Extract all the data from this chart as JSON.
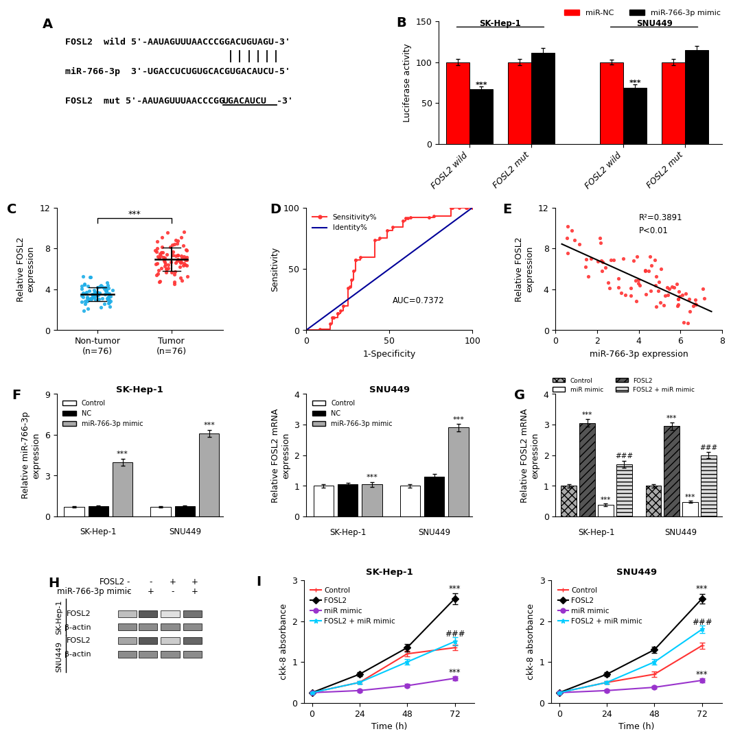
{
  "panel_A": {
    "fosl2_wild": "FOSL2  wild 5'-AAUAGUUUAACCCGGACUGUAGU-3'",
    "mir": "miR-766-3p  3'-UGACCUCUGUGCACGUGACAUCU-5'",
    "fosl2_mut_prefix": "FOSL2  mut 5'-AAUAGUUUAACCCGG",
    "fosl2_mut_underlined": "UGACAUCU",
    "fosl2_mut_suffix": "-3'"
  },
  "panel_B": {
    "title_sk": "SK-Hep-1",
    "title_snu": "SNU449",
    "mir_nc_values": [
      100,
      100,
      100,
      100
    ],
    "mir_mimic_values": [
      67,
      111,
      69,
      115
    ],
    "mir_nc_err": [
      4,
      4,
      3,
      4
    ],
    "mir_mimic_err": [
      3,
      6,
      4,
      5
    ],
    "ylabel": "Luciferase activity",
    "ylim": [
      0,
      150
    ],
    "yticks": [
      0,
      50,
      100,
      150
    ],
    "color_nc": "#FF0000",
    "color_mimic": "#000000",
    "legend_nc": "miR-NC",
    "legend_mimic": "miR-766-3p mimic"
  },
  "panel_C": {
    "nontumor_mean": 3.4,
    "nontumor_sd": 0.75,
    "tumor_mean": 6.9,
    "tumor_sd": 1.1,
    "ylim": [
      0,
      12
    ],
    "yticks": [
      0,
      4,
      8,
      12
    ],
    "color_nontumor": "#1EAEE8",
    "color_tumor": "#FF3333"
  },
  "panel_D": {
    "xlabel": "1-Specificity",
    "ylabel": "Sensitivity",
    "xlim": [
      0,
      100
    ],
    "ylim": [
      0,
      100
    ],
    "xticks": [
      0,
      50,
      100
    ],
    "yticks": [
      0,
      50,
      100
    ],
    "auc_text": "AUC=0.7372",
    "legend_sens": "Sensitivity%",
    "legend_ident": "Identity%",
    "color_roc": "#FF3333",
    "color_diag": "#000099"
  },
  "panel_E": {
    "xlabel": "miR-766-3p expression",
    "xlim": [
      0,
      8
    ],
    "ylim": [
      0,
      12
    ],
    "yticks": [
      0,
      4,
      8,
      12
    ],
    "r2_text": "R²=0.3891",
    "p_text": "P<0.01",
    "color_dots": "#FF3333"
  },
  "panel_F_left": {
    "title": "SK-Hep-1",
    "ylabel_left": "Relative miR-766-3p\nexpression",
    "values_skhep": [
      0.7,
      0.75,
      4.0
    ],
    "values_snu": [
      0.7,
      0.75,
      6.1
    ],
    "errors_skhep": [
      0.06,
      0.06,
      0.25
    ],
    "errors_snu": [
      0.06,
      0.06,
      0.25
    ],
    "ylim": [
      0,
      9
    ],
    "yticks": [
      0,
      3,
      6,
      9
    ],
    "colors": [
      "#FFFFFF",
      "#000000",
      "#AAAAAA"
    ]
  },
  "panel_F_right": {
    "title": "SNU449",
    "ylabel_right": "Relative FOSL2 mRNA\nexpression",
    "values_skhep": [
      1.0,
      1.05,
      1.05
    ],
    "values_snu": [
      1.0,
      1.3,
      2.9
    ],
    "errors_skhep": [
      0.05,
      0.05,
      0.08
    ],
    "errors_snu": [
      0.05,
      0.1,
      0.12
    ],
    "ylim": [
      0,
      4
    ],
    "yticks": [
      0,
      1,
      2,
      3,
      4
    ],
    "colors": [
      "#FFFFFF",
      "#000000",
      "#AAAAAA"
    ]
  },
  "panel_G": {
    "ylabel": "Relative FOSL2 mRNA\nexpression",
    "values_skhep": [
      1.0,
      3.05,
      0.38,
      1.7
    ],
    "values_snu": [
      1.0,
      2.95,
      0.48,
      2.0
    ],
    "errors_skhep": [
      0.06,
      0.12,
      0.04,
      0.12
    ],
    "errors_snu": [
      0.06,
      0.12,
      0.04,
      0.1
    ],
    "ylim": [
      0,
      4
    ],
    "yticks": [
      0,
      1,
      2,
      3,
      4
    ],
    "color_control": "#AAAAAA",
    "color_fosl2": "#555555",
    "color_mir": "#FFFFFF",
    "color_combo": "#DDDDDD",
    "hatch_control": "xxx",
    "hatch_fosl2": "///",
    "hatch_mir": "",
    "hatch_combo": "---"
  },
  "panel_I_left": {
    "title": "SK-Hep-1",
    "xlabel": "Time (h)",
    "ylabel": "ckk-8 absorbance",
    "timepoints": [
      0,
      24,
      48,
      72
    ],
    "control": [
      0.25,
      0.5,
      1.2,
      1.35
    ],
    "fosl2": [
      0.25,
      0.7,
      1.35,
      2.55
    ],
    "mir_mimic": [
      0.25,
      0.3,
      0.42,
      0.6
    ],
    "fosl2_mir": [
      0.25,
      0.5,
      1.0,
      1.5
    ],
    "control_err": [
      0.02,
      0.04,
      0.07,
      0.07
    ],
    "fosl2_err": [
      0.02,
      0.05,
      0.09,
      0.13
    ],
    "mir_mimic_err": [
      0.02,
      0.03,
      0.04,
      0.05
    ],
    "fosl2_mir_err": [
      0.02,
      0.04,
      0.07,
      0.1
    ],
    "ylim": [
      0,
      3
    ],
    "yticks": [
      0,
      1,
      2,
      3
    ],
    "color_control": "#FF3333",
    "color_fosl2": "#000000",
    "color_mir": "#9933CC",
    "color_combo": "#00CCFF",
    "legend": [
      "Control",
      "FOSL2",
      "miR mimic",
      "FOSL2 + miR mimic"
    ]
  },
  "panel_I_right": {
    "title": "SNU449",
    "xlabel": "Time (h)",
    "ylabel": "ckk-8 absorbance",
    "timepoints": [
      0,
      24,
      48,
      72
    ],
    "control": [
      0.25,
      0.5,
      0.7,
      1.4
    ],
    "fosl2": [
      0.25,
      0.7,
      1.3,
      2.55
    ],
    "mir_mimic": [
      0.25,
      0.3,
      0.38,
      0.55
    ],
    "fosl2_mir": [
      0.25,
      0.5,
      1.0,
      1.8
    ],
    "control_err": [
      0.02,
      0.04,
      0.06,
      0.08
    ],
    "fosl2_err": [
      0.02,
      0.05,
      0.08,
      0.12
    ],
    "mir_mimic_err": [
      0.02,
      0.03,
      0.03,
      0.05
    ],
    "fosl2_mir_err": [
      0.02,
      0.04,
      0.07,
      0.1
    ],
    "ylim": [
      0,
      3
    ],
    "yticks": [
      0,
      1,
      2,
      3
    ],
    "color_control": "#FF3333",
    "color_fosl2": "#000000",
    "color_mir": "#9933CC",
    "color_combo": "#00CCFF",
    "legend": [
      "Control",
      "FOSL2",
      "miR mimic",
      "FOSL2 + miR mimic"
    ]
  },
  "tick_fontsize": 9,
  "panel_label_fontsize": 14
}
